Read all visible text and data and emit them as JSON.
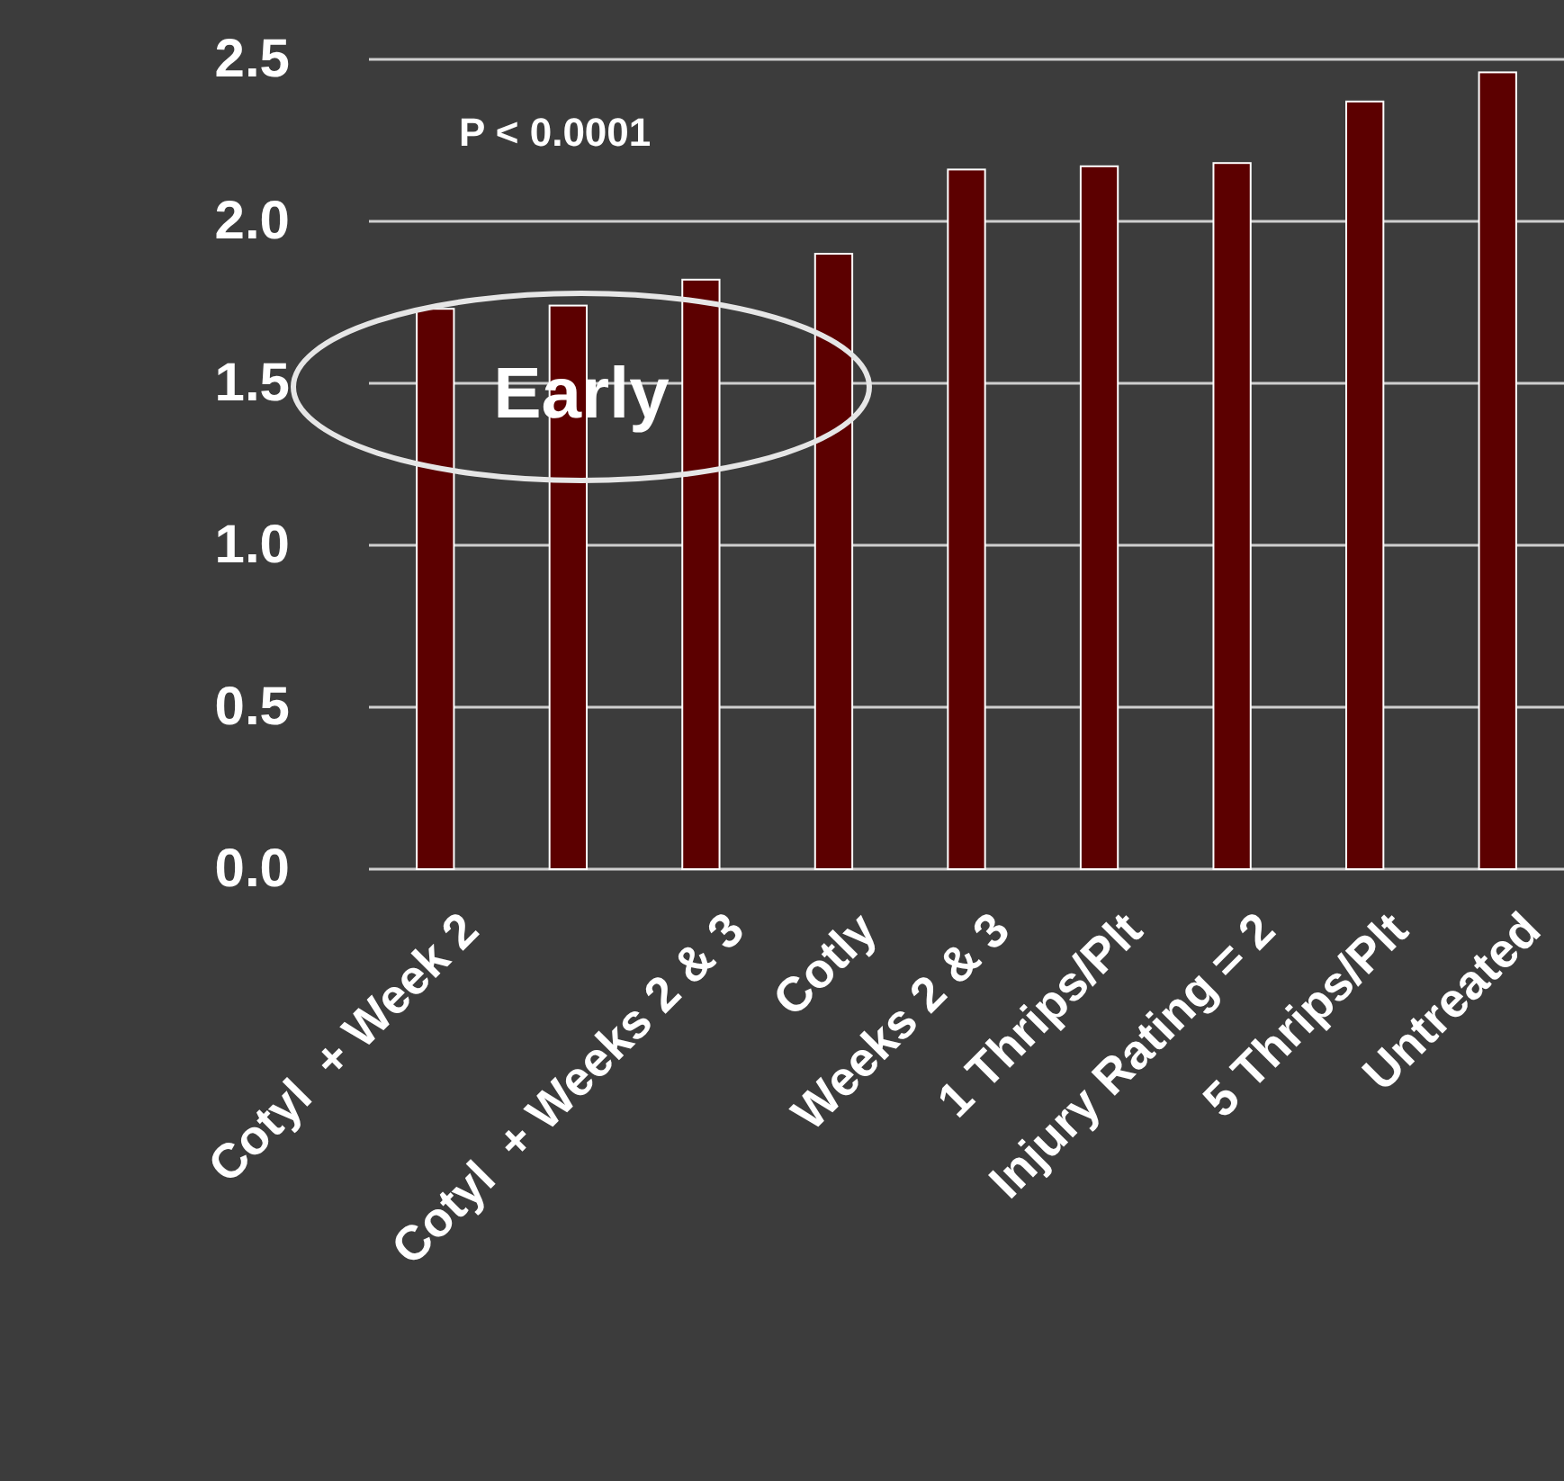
{
  "chart_data": {
    "type": "bar",
    "categories": [
      "Cotyl  + Week 2",
      null,
      "Cotyl  + Weeks 2 & 3",
      "Cotly",
      "Weeks 2 & 3",
      "1 Thrips/Plt",
      "Injury Rating = 2",
      "5 Thrips/Plt",
      "Untreated"
    ],
    "values": [
      1.73,
      1.74,
      1.82,
      1.9,
      2.16,
      2.17,
      2.18,
      2.37,
      2.46
    ],
    "color": "#5c0000",
    "ylim": [
      0,
      2.5
    ],
    "yticks": [
      {
        "value": 0,
        "label": "0.0"
      },
      {
        "value": 0.5,
        "label": "0.5"
      },
      {
        "value": 1,
        "label": "1.0"
      },
      {
        "value": 1.5,
        "label": "1.5"
      },
      {
        "value": 2,
        "label": "2.0"
      },
      {
        "value": 2.5,
        "label": "2.5"
      }
    ],
    "grid": "y",
    "annotations": [
      "P < 0.0001",
      "Early"
    ]
  }
}
